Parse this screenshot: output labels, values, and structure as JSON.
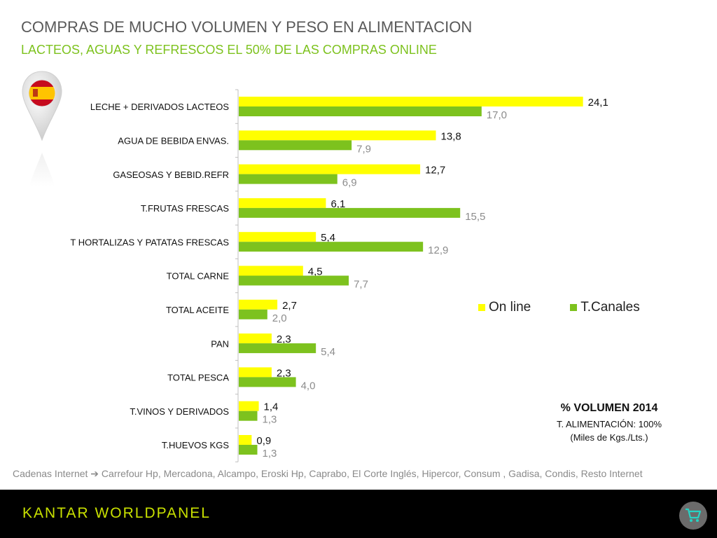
{
  "header": {
    "title": "COMPRAS DE MUCHO VOLUMEN Y PESO EN ALIMENTACION",
    "subtitle": "LACTEOS, AGUAS Y REFRESCOS EL 50% DE LAS COMPRAS ONLINE"
  },
  "chart_data": {
    "type": "bar",
    "orientation": "horizontal",
    "categories": [
      "LECHE + DERIVADOS LACTEOS",
      "AGUA DE BEBIDA ENVAS.",
      "GASEOSAS Y BEBID.REFR",
      "T.FRUTAS FRESCAS",
      "T HORTALIZAS Y PATATAS FRESCAS",
      "TOTAL CARNE",
      "TOTAL ACEITE",
      "PAN",
      "TOTAL PESCA",
      "T.VINOS Y DERIVADOS",
      "T.HUEVOS KGS"
    ],
    "series": [
      {
        "name": "On line",
        "color": "#ffff00",
        "values": [
          24.1,
          13.8,
          12.7,
          6.1,
          5.4,
          4.5,
          2.7,
          2.3,
          2.3,
          1.4,
          0.9
        ],
        "labels": [
          "24,1",
          "13,8",
          "12,7",
          "6,1",
          "5,4",
          "4,5",
          "2,7",
          "2,3",
          "2,3",
          "1,4",
          "0,9"
        ]
      },
      {
        "name": "T.Canales",
        "color": "#7dc21e",
        "values": [
          17.0,
          7.9,
          6.9,
          15.5,
          12.9,
          7.7,
          2.0,
          5.4,
          4.0,
          1.3,
          1.3
        ],
        "labels": [
          "17,0",
          "7,9",
          "6,9",
          "15,5",
          "12,9",
          "7,7",
          "2,0",
          "5,4",
          "4,0",
          "1,3",
          "1,3"
        ]
      }
    ],
    "legend_position": "right",
    "grid": false
  },
  "note": {
    "title": "% VOLUMEN 2014",
    "line1": "T. ALIMENTACIÓN: 100%",
    "line2": "(Miles de Kgs./Lts.)"
  },
  "footnote": "Cadenas Internet ➔ Carrefour Hp, Mercadona, Alcampo, Eroski Hp, Caprabo, El Corte Inglés, Hipercor, Consum , Gadisa, Condis, Resto Internet",
  "footer": {
    "brand_part1": "KANTAR ",
    "brand_part2": "WORLDPANEL",
    "cart_icon": "shopping-cart-icon"
  },
  "flag_icon": "spain-flag-pin-icon"
}
